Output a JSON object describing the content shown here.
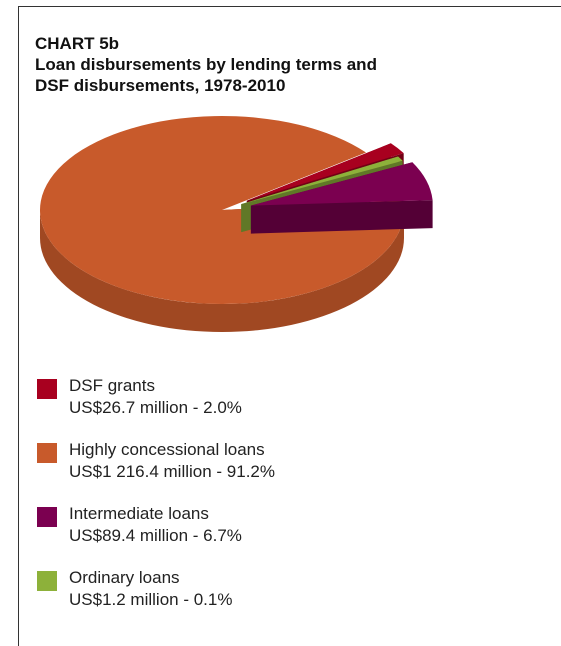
{
  "chart_data": {
    "type": "pie",
    "label": "CHART 5b",
    "title": "Loan disbursements by lending terms and DSF disbursements, 1978-2010",
    "slices": [
      {
        "name": "DSF grants",
        "value_text": "US$26.7 million - 2.0%",
        "amount": 26.7,
        "unit": "US$ million",
        "percent": 2.0,
        "color": "#a8001f"
      },
      {
        "name": "Highly concessional loans",
        "value_text": "US$1 216.4 million - 91.2%",
        "amount": 1216.4,
        "unit": "US$ million",
        "percent": 91.2,
        "color": "#c85a2b"
      },
      {
        "name": "Intermediate loans",
        "value_text": "US$89.4 million - 6.7%",
        "amount": 89.4,
        "unit": "US$ million",
        "percent": 6.7,
        "color": "#7b0050"
      },
      {
        "name": "Ordinary loans",
        "value_text": "US$1.2 million - 0.1%",
        "amount": 1.2,
        "unit": "US$ million",
        "percent": 0.1,
        "color": "#8db13a"
      }
    ],
    "legend_position": "bottom"
  }
}
